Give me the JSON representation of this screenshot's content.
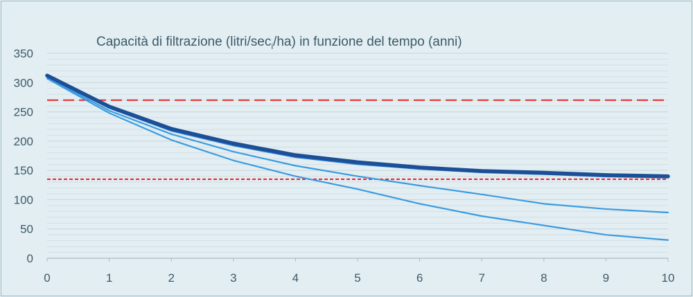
{
  "chart_data": {
    "type": "line",
    "title": "Capacità di filtrazione (litri/sec",
    "title_sub": "i",
    "title_rest": "/ha)  in funzione del tempo (anni)",
    "xlabel": "",
    "ylabel": "",
    "x": [
      0,
      1,
      2,
      3,
      4,
      5,
      6,
      7,
      8,
      9,
      10
    ],
    "xlim": [
      0,
      10
    ],
    "ylim": [
      0,
      350
    ],
    "yticks": [
      0,
      50,
      100,
      150,
      200,
      250,
      300,
      350
    ],
    "xticks": [
      0,
      1,
      2,
      3,
      4,
      5,
      6,
      7,
      8,
      9,
      10
    ],
    "grid": "horizontal",
    "series": [
      {
        "values": [
          307,
          248,
          202,
          167,
          140,
          118,
          93,
          72,
          56,
          40,
          31
        ],
        "color": "#3a9be0",
        "style": "thin"
      },
      {
        "values": [
          309,
          252,
          212,
          182,
          158,
          140,
          124,
          109,
          93,
          84,
          78
        ],
        "color": "#3a9be0",
        "style": "thin"
      },
      {
        "values": [
          311,
          257,
          218,
          193,
          173,
          161,
          153,
          147,
          144,
          140,
          138
        ],
        "color": "#2a7fd4",
        "style": "medium"
      },
      {
        "values": [
          312,
          259,
          221,
          196,
          176,
          164,
          155,
          149,
          146,
          142,
          140
        ],
        "color": "#1c4f96",
        "style": "thick"
      }
    ],
    "reference_lines": [
      {
        "y": 270,
        "color": "#e32222",
        "style": "long-dash"
      },
      {
        "y": 135,
        "color": "#e32222",
        "style": "short-dash"
      }
    ]
  }
}
